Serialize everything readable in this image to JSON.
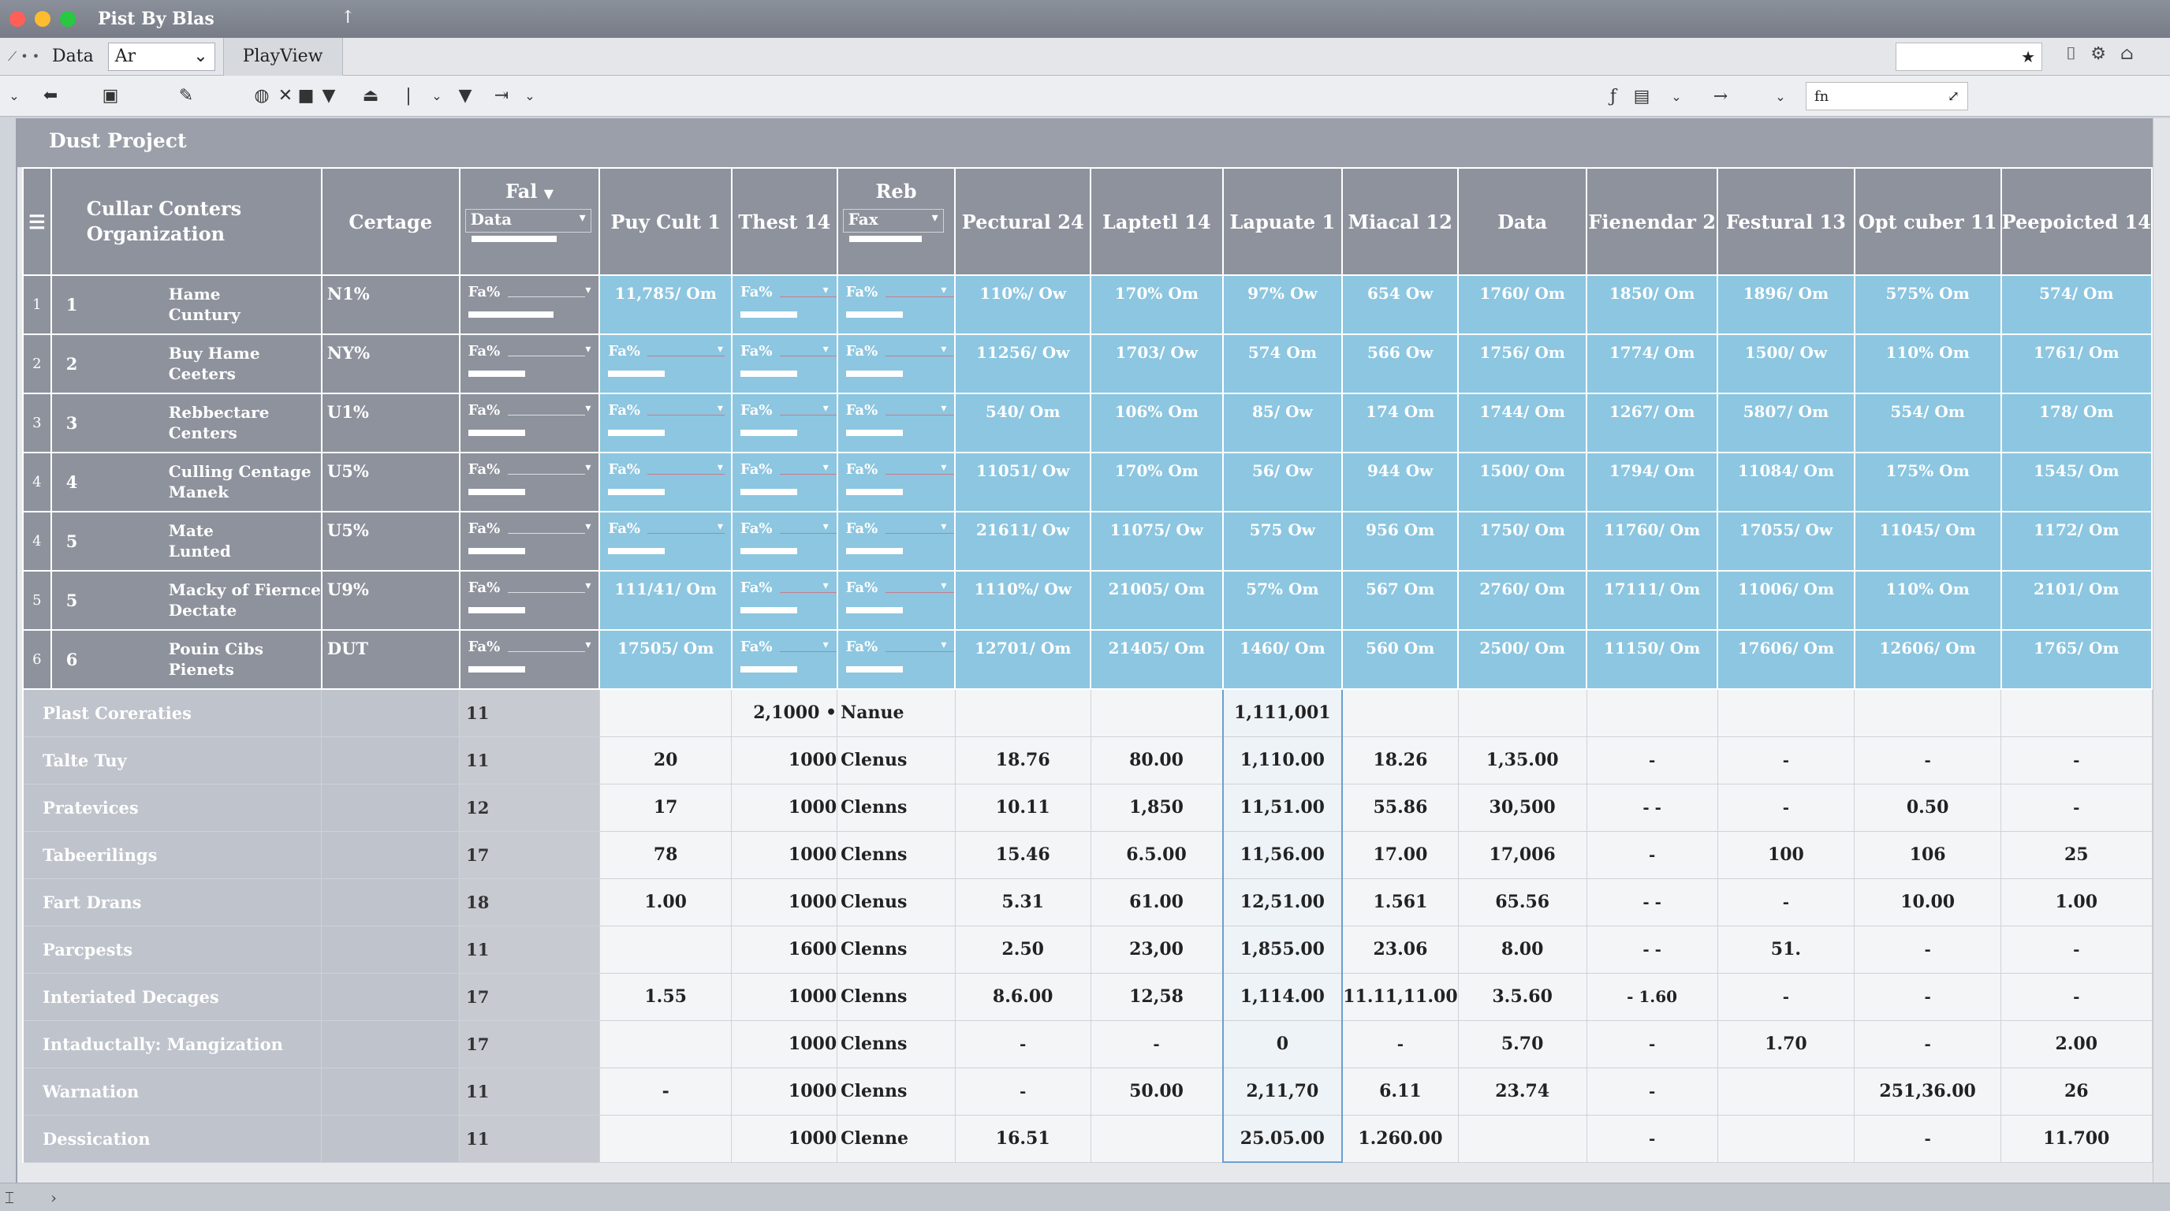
{
  "window": {
    "title": "Pist By Blas",
    "up_icon": "↑"
  },
  "menubar": {
    "nav": "⟋ • •",
    "data": "Data",
    "dropdown_value": "Ar",
    "tab_label": "PlayView"
  },
  "toolbar": {
    "formula_label": "fn"
  },
  "project_title": "Dust Project",
  "headers": {
    "org": "Cullar Conters\nOrganization",
    "cert": "Certage",
    "fal": "Fal",
    "fal_sub": "Data",
    "puy": "Puy Cult 1",
    "thest": "Thest 14",
    "reb": "Reb",
    "reb_sub": "Fax",
    "cols": [
      "Pectural 24",
      "Laptetl 14",
      "Lapuate 1",
      "Miacal 12",
      "Data",
      "Fienendar 2",
      "Festural 13",
      "Opt cuber 11",
      "Peepoicted 14"
    ]
  },
  "top_rows": [
    {
      "rn": "1",
      "num": "1",
      "org1": "Hame",
      "org2": "Cuntury",
      "cert": "N1%",
      "fal": "Fa%",
      "puy": "11,785/ Om",
      "thest": "Fa%",
      "reb": "Fa%",
      "vals": [
        "110%/ Ow",
        "170% Om",
        "97% Ow",
        "654 Ow",
        "1760/ Om",
        "1850/ Om",
        "1896/ Om",
        "575% Om",
        "574/ Om"
      ]
    },
    {
      "rn": "2",
      "num": "2",
      "org1": "Buy Hame",
      "org2": "Ceeters",
      "cert": "NY%",
      "fal": "Fa%",
      "puy": "Fa%",
      "thest": "Fa%",
      "reb": "Fa%",
      "vals": [
        "11256/ Ow",
        "1703/ Ow",
        "574 Om",
        "566 Ow",
        "1756/ Om",
        "1774/ Om",
        "1500/ Ow",
        "110% Om",
        "1761/ Om"
      ]
    },
    {
      "rn": "3",
      "num": "3",
      "org1": "Rebbectare",
      "org2": "Centers",
      "cert": "U1%",
      "fal": "Fa%",
      "puy": "Fa%",
      "thest": "Fa%",
      "reb": "Fa%",
      "vals": [
        "540/ Om",
        "106% Om",
        "85/ Ow",
        "174 Om",
        "1744/ Om",
        "1267/ Om",
        "5807/ Om",
        "554/ Om",
        "178/ Om"
      ]
    },
    {
      "rn": "4",
      "num": "4",
      "org1": "Culling Centage",
      "org2": "Manek",
      "cert": "U5%",
      "fal": "Fa%",
      "puy": "Fa%",
      "thest": "Fa%",
      "reb": "Fa%",
      "vals": [
        "11051/ Ow",
        "170% Om",
        "56/ Ow",
        "944 Ow",
        "1500/ Om",
        "1794/ Om",
        "11084/ Om",
        "175% Om",
        "1545/ Om"
      ]
    },
    {
      "rn": "4",
      "num": "5",
      "org1": "Mate",
      "org2": "Lunted",
      "cert": "U5%",
      "fal": "Fa%",
      "puy": "Fa%",
      "thest": "Fa%",
      "reb": "Fa%",
      "vals": [
        "21611/ Ow",
        "11075/ Ow",
        "575 Ow",
        "956 Om",
        "1750/ Om",
        "11760/ Om",
        "17055/ Ow",
        "11045/ Om",
        "1172/ Om"
      ]
    },
    {
      "rn": "5",
      "num": "5",
      "org1": "Macky of Fiernce",
      "org2": "Dectate",
      "cert": "U9%",
      "fal": "Fa%",
      "puy": "111/41/ Om",
      "thest": "Fa%",
      "reb": "Fa%",
      "vals": [
        "1110%/ Ow",
        "21005/ Om",
        "57% Om",
        "567 Om",
        "2760/ Om",
        "17111/ Om",
        "11006/ Om",
        "110% Om",
        "2101/ Om"
      ]
    },
    {
      "rn": "6",
      "num": "6",
      "org1": "Pouin Cibs",
      "org2": "Pienets",
      "cert": "DUT",
      "fal": "Fa%",
      "puy": "17505/ Om",
      "thest": "Fa%",
      "reb": "Fa%",
      "vals": [
        "12701/ Om",
        "21405/ Om",
        "1460/ Om",
        "560 Om",
        "2500/ Om",
        "11150/ Om",
        "17606/ Om",
        "12606/ Om",
        "1765/ Om"
      ]
    }
  ],
  "bottom_rows": [
    {
      "label": "Plast Coreraties",
      "cnt": "11",
      "puy": "",
      "thest": "2,1000 •",
      "reb": "Nanue",
      "vals": [
        "",
        "",
        "1,111,001",
        "",
        "",
        "",
        "",
        "",
        ""
      ]
    },
    {
      "label": "Talte Tuy",
      "cnt": "11",
      "puy": "20",
      "thest": "1000",
      "reb": "Clenus",
      "vals": [
        "18.76",
        "80.00",
        "1,110.00",
        "18.26",
        "1,35.00",
        "-",
        "-",
        "-",
        "-"
      ]
    },
    {
      "label": "Pratevices",
      "cnt": "12",
      "puy": "17",
      "thest": "1000",
      "reb": "Clenns",
      "vals": [
        "10.11",
        "1,850",
        "11,51.00",
        "55.86",
        "30,500",
        "-   -",
        "-",
        "0.50",
        "-"
      ]
    },
    {
      "label": "Tabeerilings",
      "cnt": "17",
      "puy": "78",
      "thest": "1000",
      "reb": "Clenns",
      "vals": [
        "15.46",
        "6.5.00",
        "11,56.00",
        "17.00",
        "17,006",
        "-",
        "100",
        "106",
        "25"
      ]
    },
    {
      "label": "Fart Drans",
      "cnt": "18",
      "puy": "1.00",
      "thest": "1000",
      "reb": "Clenus",
      "vals": [
        "5.31",
        "61.00",
        "12,51.00",
        "1.561",
        "65.56",
        "-   -",
        "-",
        "10.00",
        "1.00"
      ]
    },
    {
      "label": "Parcpests",
      "cnt": "11",
      "puy": "",
      "thest": "1600",
      "reb": "Clenns",
      "vals": [
        "2.50",
        "23,00",
        "1,855.00",
        "23.06",
        "8.00",
        "-   -",
        "51.",
        "-",
        "-"
      ]
    },
    {
      "label": "Interiated Decages",
      "cnt": "17",
      "puy": "1.55",
      "thest": "1000",
      "reb": "Clenns",
      "vals": [
        "8.6.00",
        "12,58",
        "1,114.00",
        "11.11,11.00",
        "3.5.60",
        "-  1.60",
        "-",
        "-",
        "-"
      ]
    },
    {
      "label": "Intaductally: Mangization",
      "cnt": "17",
      "puy": "",
      "thest": "1000",
      "reb": "Clenns",
      "vals": [
        "-",
        "-",
        "0",
        "-",
        "5.70",
        "-",
        "1.70",
        "-",
        "2.00"
      ]
    },
    {
      "label": "Warnation",
      "cnt": "11",
      "puy": "-",
      "thest": "1000",
      "reb": "Clenns",
      "vals": [
        "-",
        "50.00",
        "2,11,70",
        "6.11",
        "23.74",
        "-",
        "",
        "251,36.00",
        "26"
      ]
    },
    {
      "label": "Dessication",
      "cnt": "11",
      "puy": "",
      "thest": "1000",
      "reb": "Clenne",
      "vals": [
        "16.51",
        "",
        "25.05.00",
        "1.260.00",
        "",
        "-",
        "",
        "-",
        "11.700"
      ]
    }
  ],
  "colors": {
    "header": "#8d929c",
    "blue": "#8cc6e0",
    "close": "#ff5f57",
    "min": "#febc2e",
    "max": "#28c840"
  }
}
